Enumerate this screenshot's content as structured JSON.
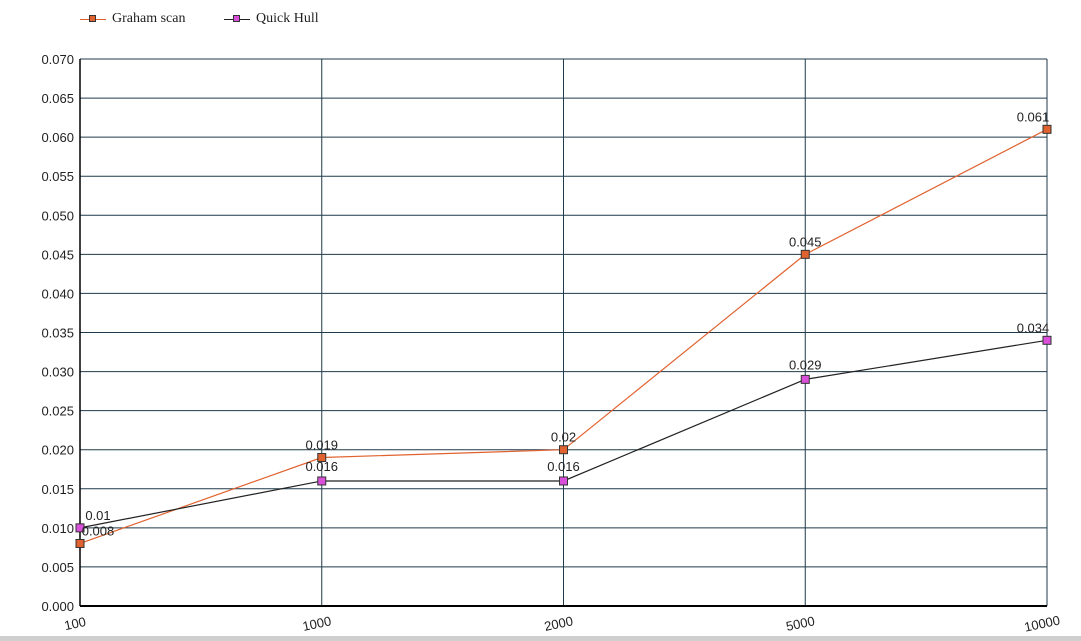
{
  "colors": {
    "background": "#ffffff",
    "grid": "#1f3a4a",
    "axis": "#000000",
    "graham": "#e0622f",
    "quickhull": "#d94fd9",
    "quickhull_line": "#222222"
  },
  "chart_data": {
    "type": "line",
    "title": "",
    "xlabel": "",
    "ylabel": "",
    "categories": [
      "100",
      "1000",
      "2000",
      "5000",
      "10000"
    ],
    "ylim": [
      0,
      0.07
    ],
    "yticks": [
      "0.000",
      "0.005",
      "0.010",
      "0.015",
      "0.020",
      "0.025",
      "0.030",
      "0.035",
      "0.040",
      "0.045",
      "0.050",
      "0.055",
      "0.060",
      "0.065",
      "0.070"
    ],
    "grid": true,
    "legend_position": "top-left",
    "series": [
      {
        "name": "Graham scan",
        "values": [
          0.008,
          0.019,
          0.02,
          0.045,
          0.061
        ],
        "labels": [
          "0.008",
          "0.019",
          "0.02",
          "0.045",
          "0.061"
        ]
      },
      {
        "name": "Quick Hull",
        "values": [
          0.01,
          0.016,
          0.016,
          0.029,
          0.034
        ],
        "labels": [
          "0.01",
          "0.016",
          "0.016",
          "0.029",
          "0.034"
        ]
      }
    ]
  }
}
